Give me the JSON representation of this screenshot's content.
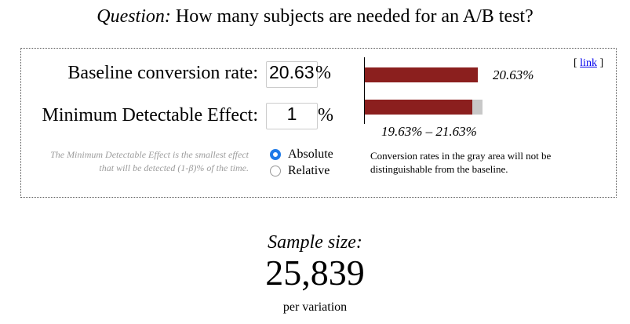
{
  "title": {
    "prefix": "Question:",
    "text": "How many subjects are needed for an A/B test?"
  },
  "form": {
    "baseline_label": "Baseline conversion rate:",
    "baseline_value": "20.63",
    "baseline_unit": "%",
    "mde_label": "Minimum Detectable Effect:",
    "mde_value": "1",
    "mde_unit": "%",
    "mde_note": "The Minimum Detectable Effect is the smallest effect that will be detected (1-β)% of the time.",
    "options": [
      {
        "label": "Absolute",
        "checked": true
      },
      {
        "label": "Relative",
        "checked": false
      }
    ]
  },
  "chart": {
    "baseline_label": "20.63%",
    "range_label": "19.63% – 21.63%",
    "colors": {
      "bar": "#8b1f1e",
      "gray": "#c8c8c8"
    },
    "explanation": "Conversion rates in the gray area will not be distinguishable from the baseline."
  },
  "link": {
    "open": "[",
    "label": "link",
    "close": "]"
  },
  "result": {
    "label": "Sample size:",
    "value": "25,839",
    "unit": "per variation"
  }
}
